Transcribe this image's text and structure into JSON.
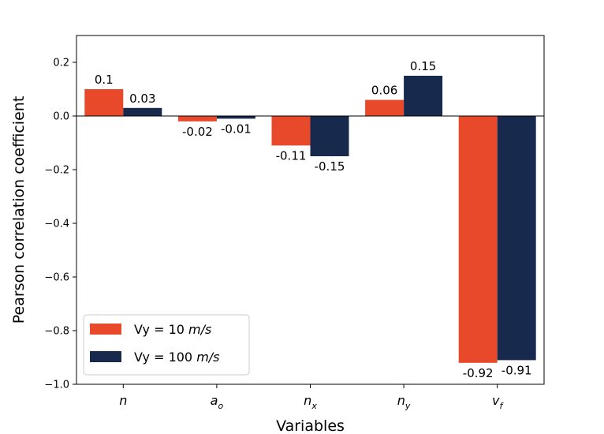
{
  "chart_data": {
    "type": "bar",
    "title": "",
    "xlabel": "Variables",
    "ylabel": "Pearson correlation coefficient",
    "ylim": [
      -1.0,
      0.3
    ],
    "yticks": [
      {
        "value": 0.2,
        "label": "0.2"
      },
      {
        "value": 0.0,
        "label": "0.0"
      },
      {
        "value": -0.2,
        "label": "−0.2"
      },
      {
        "value": -0.4,
        "label": "−0.4"
      },
      {
        "value": -0.6,
        "label": "−0.6"
      },
      {
        "value": -0.8,
        "label": "−0.8"
      },
      {
        "value": -1.0,
        "label": "−1.0"
      }
    ],
    "categories": [
      {
        "base": "n",
        "sub": ""
      },
      {
        "base": "a",
        "sub": "o"
      },
      {
        "base": "n",
        "sub": "x"
      },
      {
        "base": "n",
        "sub": "y"
      },
      {
        "base": "v",
        "sub": "f"
      }
    ],
    "series": [
      {
        "name": "Vy = 10",
        "unit": "m/s",
        "color": "#e8492a",
        "values": [
          0.1,
          -0.02,
          -0.11,
          0.06,
          -0.92
        ],
        "labels": [
          "0.1",
          "-0.02",
          "-0.11",
          "0.06",
          "-0.92"
        ]
      },
      {
        "name": "Vy = 100",
        "unit": "m/s",
        "color": "#172a4d",
        "values": [
          0.03,
          -0.01,
          -0.15,
          0.15,
          -0.91
        ],
        "labels": [
          "0.03",
          "-0.01",
          "-0.15",
          "0.15",
          "-0.91"
        ]
      }
    ],
    "legend_position": "lower-left",
    "grid": false
  }
}
